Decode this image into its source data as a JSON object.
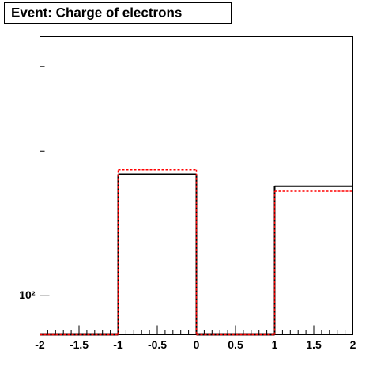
{
  "chart_data": {
    "type": "histogram",
    "title": "Event: Charge of electrons",
    "bins": [
      -2,
      -1,
      0,
      1,
      2
    ],
    "series": [
      {
        "color": "#000000",
        "dash": "solid",
        "values": [
          0,
          179,
          0,
          169
        ]
      },
      {
        "color": "#ff0000",
        "dash": "dashed",
        "values": [
          0,
          183,
          0,
          165
        ]
      }
    ],
    "xlim": [
      -2,
      2
    ],
    "xticks": [
      -2,
      -1.5,
      -1,
      -0.5,
      0,
      0.5,
      1,
      1.5,
      2
    ],
    "ylim": [
      83,
      346
    ],
    "log_y": true,
    "yticks": [
      {
        "value": 100,
        "label": "10²"
      }
    ],
    "yminorticks": [
      200,
      300
    ]
  }
}
